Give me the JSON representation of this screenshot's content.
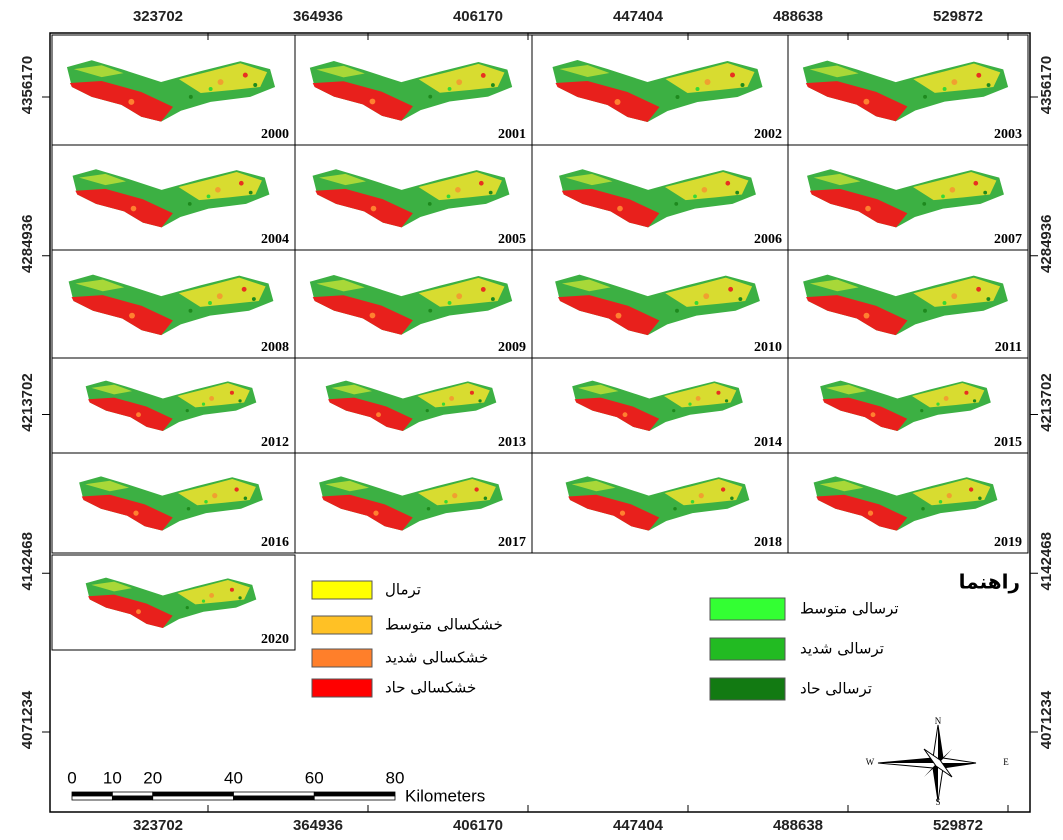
{
  "grid": {
    "eastings": [
      323702,
      364936,
      406170,
      447404,
      488638,
      529872
    ],
    "northings": [
      4356170,
      4284936,
      4213702,
      4142468,
      4071234
    ]
  },
  "panels": [
    2000,
    2001,
    2002,
    2003,
    2004,
    2005,
    2006,
    2007,
    2008,
    2009,
    2010,
    2011,
    2012,
    2013,
    2014,
    2015,
    2016,
    2017,
    2018,
    2019,
    2020
  ],
  "legend": {
    "title": "راهنما",
    "drought": [
      {
        "label": "ترمال",
        "color": "#ffff00"
      },
      {
        "label": "خشکسالی متوسط",
        "color": "#ffc125"
      },
      {
        "label": "خشکسالی شدید",
        "color": "#ff7f2a"
      },
      {
        "label": "خشکسالی  حاد",
        "color": "#ff0000"
      }
    ],
    "wet": [
      {
        "label": "ترسالی متوسط",
        "color": "#33ff33"
      },
      {
        "label": "ترسالی شدید",
        "color": "#22bb22"
      },
      {
        "label": "ترسالی حاد",
        "color": "#127a12"
      }
    ]
  },
  "scale_bar": {
    "ticks": [
      0,
      10,
      20,
      40,
      60,
      80
    ],
    "unit": "Kilometers"
  },
  "north_arrow": {
    "n": "N",
    "s": "S",
    "e": "E",
    "w": "W"
  }
}
